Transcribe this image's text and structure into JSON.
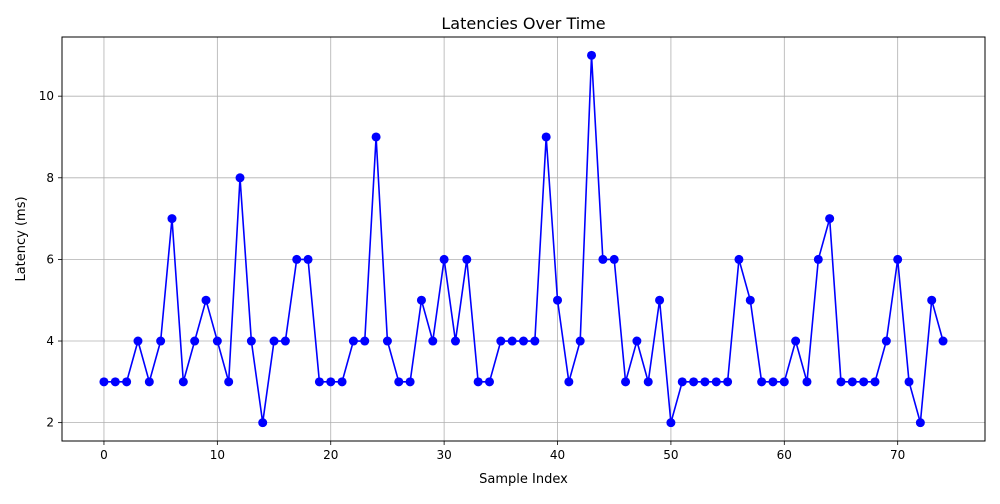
{
  "chart_data": {
    "type": "line",
    "title": "Latencies Over Time",
    "xlabel": "Sample Index",
    "ylabel": "Latency (ms)",
    "xlim": [
      -3.7,
      77.7
    ],
    "ylim": [
      1.55,
      11.45
    ],
    "x_ticks": [
      0,
      10,
      20,
      30,
      40,
      50,
      60,
      70
    ],
    "y_ticks": [
      2,
      4,
      6,
      8,
      10
    ],
    "grid": true,
    "legend": "none",
    "series": [
      {
        "color": "#0000ff",
        "marker": "circle",
        "x": [
          0,
          1,
          2,
          3,
          4,
          5,
          6,
          7,
          8,
          9,
          10,
          11,
          12,
          13,
          14,
          15,
          16,
          17,
          18,
          19,
          20,
          21,
          22,
          23,
          24,
          25,
          26,
          27,
          28,
          29,
          30,
          31,
          32,
          33,
          34,
          35,
          36,
          37,
          38,
          39,
          40,
          41,
          42,
          43,
          44,
          45,
          46,
          47,
          48,
          49,
          50,
          51,
          52,
          53,
          54,
          55,
          56,
          57,
          58,
          59,
          60,
          61,
          62,
          63,
          64,
          65,
          66,
          67,
          68,
          69,
          70,
          71,
          72,
          73,
          74
        ],
        "values": [
          3,
          3,
          3,
          4,
          3,
          4,
          7,
          3,
          4,
          5,
          4,
          3,
          8,
          4,
          2,
          4,
          4,
          6,
          6,
          3,
          3,
          3,
          4,
          4,
          9,
          4,
          3,
          3,
          5,
          4,
          6,
          4,
          6,
          3,
          3,
          4,
          4,
          4,
          4,
          9,
          5,
          3,
          4,
          11,
          6,
          6,
          3,
          4,
          3,
          5,
          2,
          3,
          3,
          3,
          3,
          3,
          6,
          5,
          3,
          3,
          3,
          4,
          3,
          6,
          7,
          3,
          3,
          3,
          3,
          4,
          6,
          3,
          2,
          5,
          4
        ]
      }
    ]
  }
}
